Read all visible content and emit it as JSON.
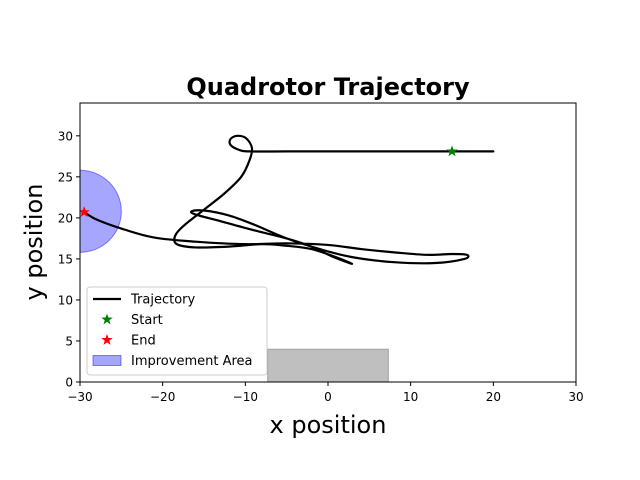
{
  "chart_data": {
    "type": "line",
    "title": "Quadrotor Trajectory",
    "xlabel": "x position",
    "ylabel": "y position",
    "xlim": [
      -30,
      30
    ],
    "ylim": [
      0,
      34
    ],
    "xticks": [
      -30,
      -20,
      -10,
      0,
      10,
      20,
      30
    ],
    "yticks": [
      0,
      5,
      10,
      15,
      20,
      25,
      30
    ],
    "xtick_labels": [
      "−30",
      "−20",
      "−10",
      "0",
      "10",
      "20",
      "30"
    ],
    "ytick_labels": [
      "0",
      "5",
      "10",
      "15",
      "20",
      "25",
      "30"
    ],
    "grid": false,
    "legend_position": "lower-left",
    "series": [
      {
        "name": "Trajectory",
        "color": "#000000",
        "points": [
          [
            20,
            28.1
          ],
          [
            15,
            28.1
          ],
          [
            10,
            28.1
          ],
          [
            5,
            28.1
          ],
          [
            0,
            28.1
          ],
          [
            -5,
            28.1
          ],
          [
            -9.5,
            28.1
          ],
          [
            -10.8,
            28.3
          ],
          [
            -11.8,
            28.9
          ],
          [
            -11.8,
            29.6
          ],
          [
            -11,
            30
          ],
          [
            -9.9,
            29.7
          ],
          [
            -9.2,
            28.5
          ],
          [
            -9.5,
            27
          ],
          [
            -10.5,
            25
          ],
          [
            -12.5,
            23
          ],
          [
            -15,
            21
          ],
          [
            -17.5,
            19
          ],
          [
            -18.5,
            17.8
          ],
          [
            -18.3,
            16.8
          ],
          [
            -16,
            16.4
          ],
          [
            -12,
            16.5
          ],
          [
            -8,
            16.8
          ],
          [
            -5,
            16.6
          ],
          [
            -2,
            16.2
          ],
          [
            1,
            15.2
          ],
          [
            2.9,
            14.4
          ],
          [
            0.5,
            15.3
          ],
          [
            -2,
            16.5
          ],
          [
            -5,
            17.5
          ],
          [
            -9,
            18.5
          ],
          [
            -13,
            19.6
          ],
          [
            -16,
            20.4
          ],
          [
            -16.5,
            20.8
          ],
          [
            -15,
            20.9
          ],
          [
            -12,
            20.3
          ],
          [
            -9,
            19.2
          ],
          [
            -5,
            17.5
          ],
          [
            -1,
            16.2
          ],
          [
            3,
            15.2
          ],
          [
            8,
            14.6
          ],
          [
            13,
            14.5
          ],
          [
            16.5,
            15
          ],
          [
            16.8,
            15.5
          ],
          [
            15,
            15.6
          ],
          [
            12,
            15.5
          ],
          [
            8,
            15.8
          ],
          [
            4,
            16.2
          ],
          [
            0,
            16.7
          ],
          [
            -5,
            16.9
          ],
          [
            -10,
            16.8
          ],
          [
            -16,
            17.1
          ],
          [
            -21,
            17.6
          ],
          [
            -25,
            18.7
          ],
          [
            -28,
            19.8
          ],
          [
            -29.5,
            20.7
          ]
        ]
      }
    ],
    "markers": [
      {
        "name": "Start",
        "x": 15,
        "y": 28.1,
        "color": "#008000"
      },
      {
        "name": "End",
        "x": -29.5,
        "y": 20.7,
        "color": "#ff0000"
      }
    ],
    "regions": [
      {
        "name": "Improvement Area",
        "shape": "circle",
        "cx": -30,
        "cy": 20.8,
        "r": 5,
        "color": "#0000ff",
        "opacity": 0.35
      },
      {
        "name": "",
        "shape": "rect",
        "x0": -7.3,
        "x1": 7.3,
        "y0": 0,
        "y1": 4,
        "color": "#808080",
        "opacity": 0.5
      }
    ],
    "legend": [
      "Trajectory",
      "Start",
      "End",
      "Improvement Area"
    ]
  }
}
